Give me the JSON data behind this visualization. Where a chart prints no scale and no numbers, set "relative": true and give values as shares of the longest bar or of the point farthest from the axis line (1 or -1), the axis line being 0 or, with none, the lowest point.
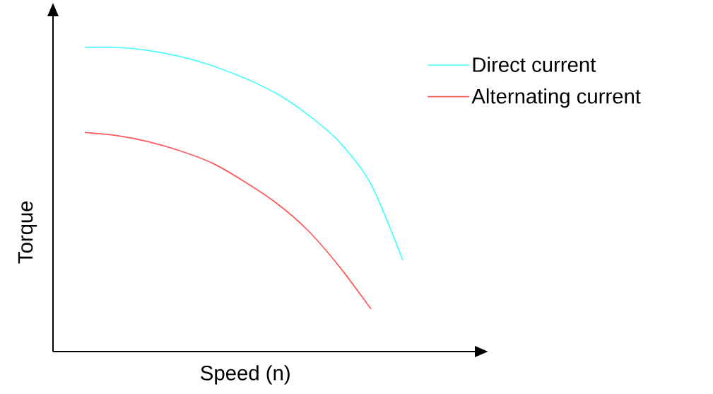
{
  "chart_data": {
    "type": "line",
    "relative": true,
    "xlabel": "Speed (n)",
    "ylabel": "Torque",
    "legend": "top right",
    "marker": "none",
    "line_style": "solid",
    "categories": [
      null,
      null,
      null,
      null,
      null,
      null,
      null,
      null,
      null,
      null,
      null,
      null,
      null
    ],
    "series": [
      {
        "name": "Direct current",
        "color": "#4dfcfc",
        "values": [
          null,
          1.0,
          1.0,
          0.99,
          0.97,
          0.94,
          0.9,
          0.85,
          0.78,
          0.69,
          0.55,
          0.3,
          null
        ]
      },
      {
        "name": "Alternating current",
        "color": "#ff5a5a",
        "values": [
          null,
          0.72,
          0.71,
          0.69,
          0.66,
          0.62,
          0.56,
          0.49,
          0.4,
          0.28,
          0.14,
          null,
          null
        ]
      }
    ]
  }
}
